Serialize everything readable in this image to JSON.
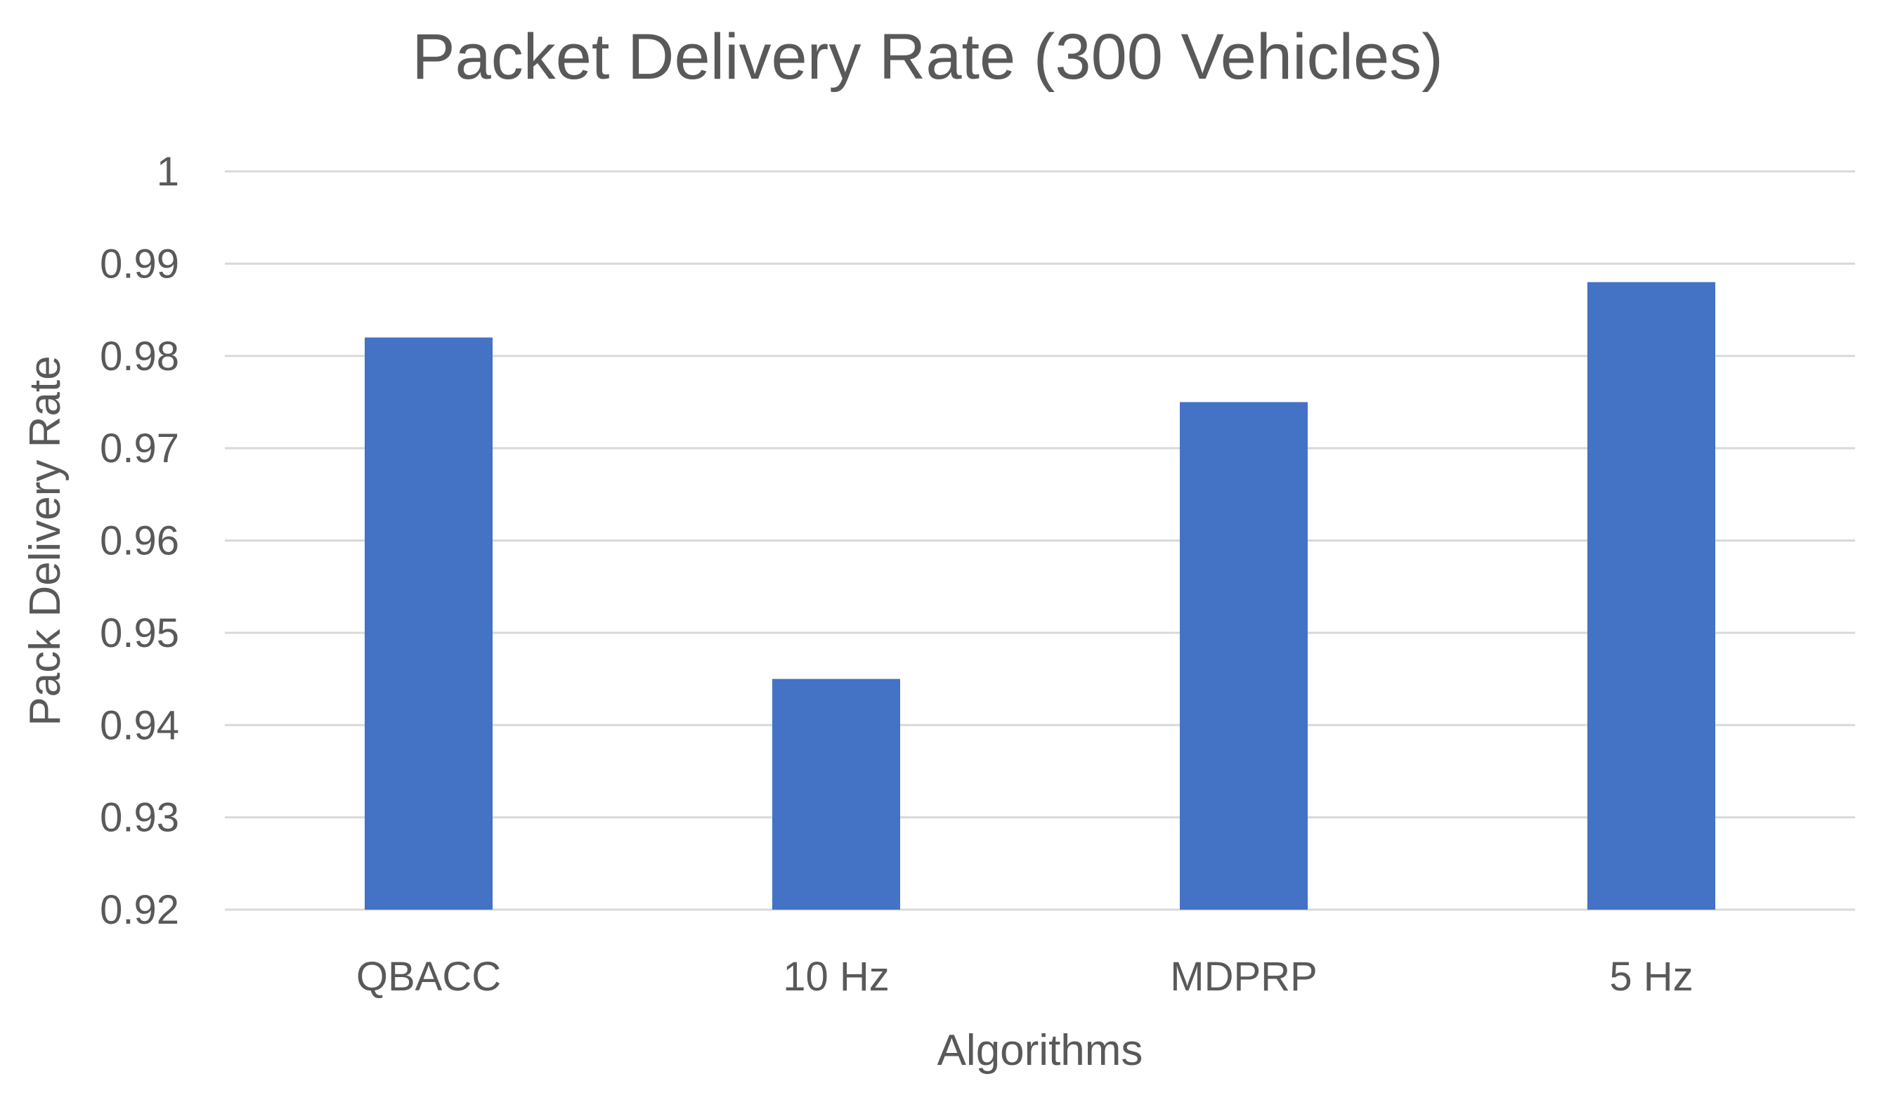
{
  "chart_data": {
    "type": "bar",
    "title": "Packet Delivery Rate (300 Vehicles)",
    "xlabel": "Algorithms",
    "ylabel": "Pack Delivery Rate",
    "categories": [
      "QBACC",
      "10 Hz",
      "MDPRP",
      "5 Hz"
    ],
    "values": [
      0.982,
      0.945,
      0.975,
      0.988
    ],
    "ylim": [
      0.92,
      1
    ],
    "yticks": [
      "0.92",
      "0.93",
      "0.94",
      "0.95",
      "0.96",
      "0.97",
      "0.98",
      "0.99",
      "1"
    ],
    "grid": true,
    "legend": "none",
    "bar_color": "#4472c4"
  }
}
